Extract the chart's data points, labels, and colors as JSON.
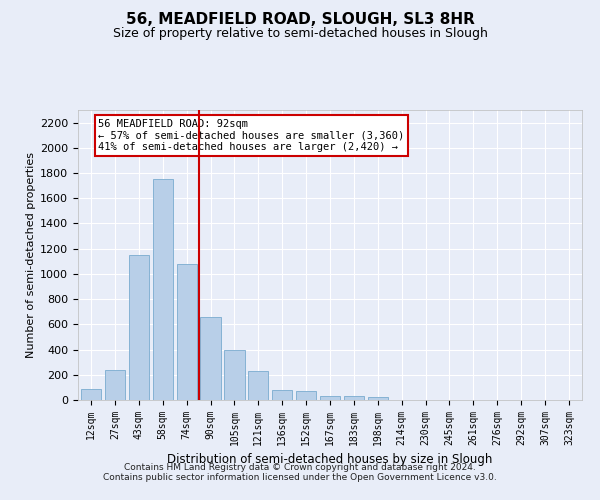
{
  "title": "56, MEADFIELD ROAD, SLOUGH, SL3 8HR",
  "subtitle": "Size of property relative to semi-detached houses in Slough",
  "xlabel": "Distribution of semi-detached houses by size in Slough",
  "ylabel": "Number of semi-detached properties",
  "categories": [
    "12sqm",
    "27sqm",
    "43sqm",
    "58sqm",
    "74sqm",
    "90sqm",
    "105sqm",
    "121sqm",
    "136sqm",
    "152sqm",
    "167sqm",
    "183sqm",
    "198sqm",
    "214sqm",
    "230sqm",
    "245sqm",
    "261sqm",
    "276sqm",
    "292sqm",
    "307sqm",
    "323sqm"
  ],
  "values": [
    90,
    240,
    1150,
    1750,
    1080,
    660,
    400,
    230,
    80,
    70,
    35,
    30,
    20,
    0,
    0,
    0,
    0,
    0,
    0,
    0,
    0
  ],
  "bar_color": "#b8cfe8",
  "bar_edge_color": "#7aabcf",
  "vline_x": 4.5,
  "vline_color": "#cc0000",
  "annotation_text": "56 MEADFIELD ROAD: 92sqm\n← 57% of semi-detached houses are smaller (3,360)\n41% of semi-detached houses are larger (2,420) →",
  "annotation_box_facecolor": "#ffffff",
  "annotation_box_edgecolor": "#cc0000",
  "ylim": [
    0,
    2300
  ],
  "yticks": [
    0,
    200,
    400,
    600,
    800,
    1000,
    1200,
    1400,
    1600,
    1800,
    2000,
    2200
  ],
  "footer_line1": "Contains HM Land Registry data © Crown copyright and database right 2024.",
  "footer_line2": "Contains public sector information licensed under the Open Government Licence v3.0.",
  "bg_color": "#e8edf8",
  "grid_color": "#ffffff",
  "title_fontsize": 11,
  "subtitle_fontsize": 9
}
